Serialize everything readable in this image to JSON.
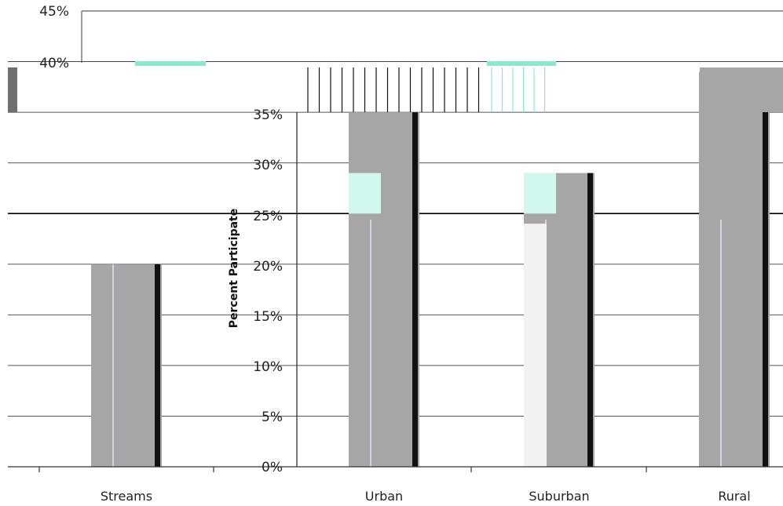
{
  "chart_data": {
    "type": "bar",
    "ylabel": "Percent Participate",
    "y_ticks": [
      "45%",
      "40%",
      "35%",
      "30%",
      "25%",
      "20%",
      "15%",
      "10%",
      "5%",
      "0%"
    ],
    "ylim": [
      0,
      45
    ],
    "categories": [
      "Streams",
      "Urban",
      "Suburban",
      "Rural"
    ],
    "series": [
      {
        "values": [
          20,
          35,
          29,
          39
        ],
        "color": "#a6a6a6"
      }
    ],
    "highlight_values": [
      null,
      29,
      29,
      null
    ],
    "highlight_color": "#d2f7ec",
    "grid": true,
    "legend": "none"
  }
}
